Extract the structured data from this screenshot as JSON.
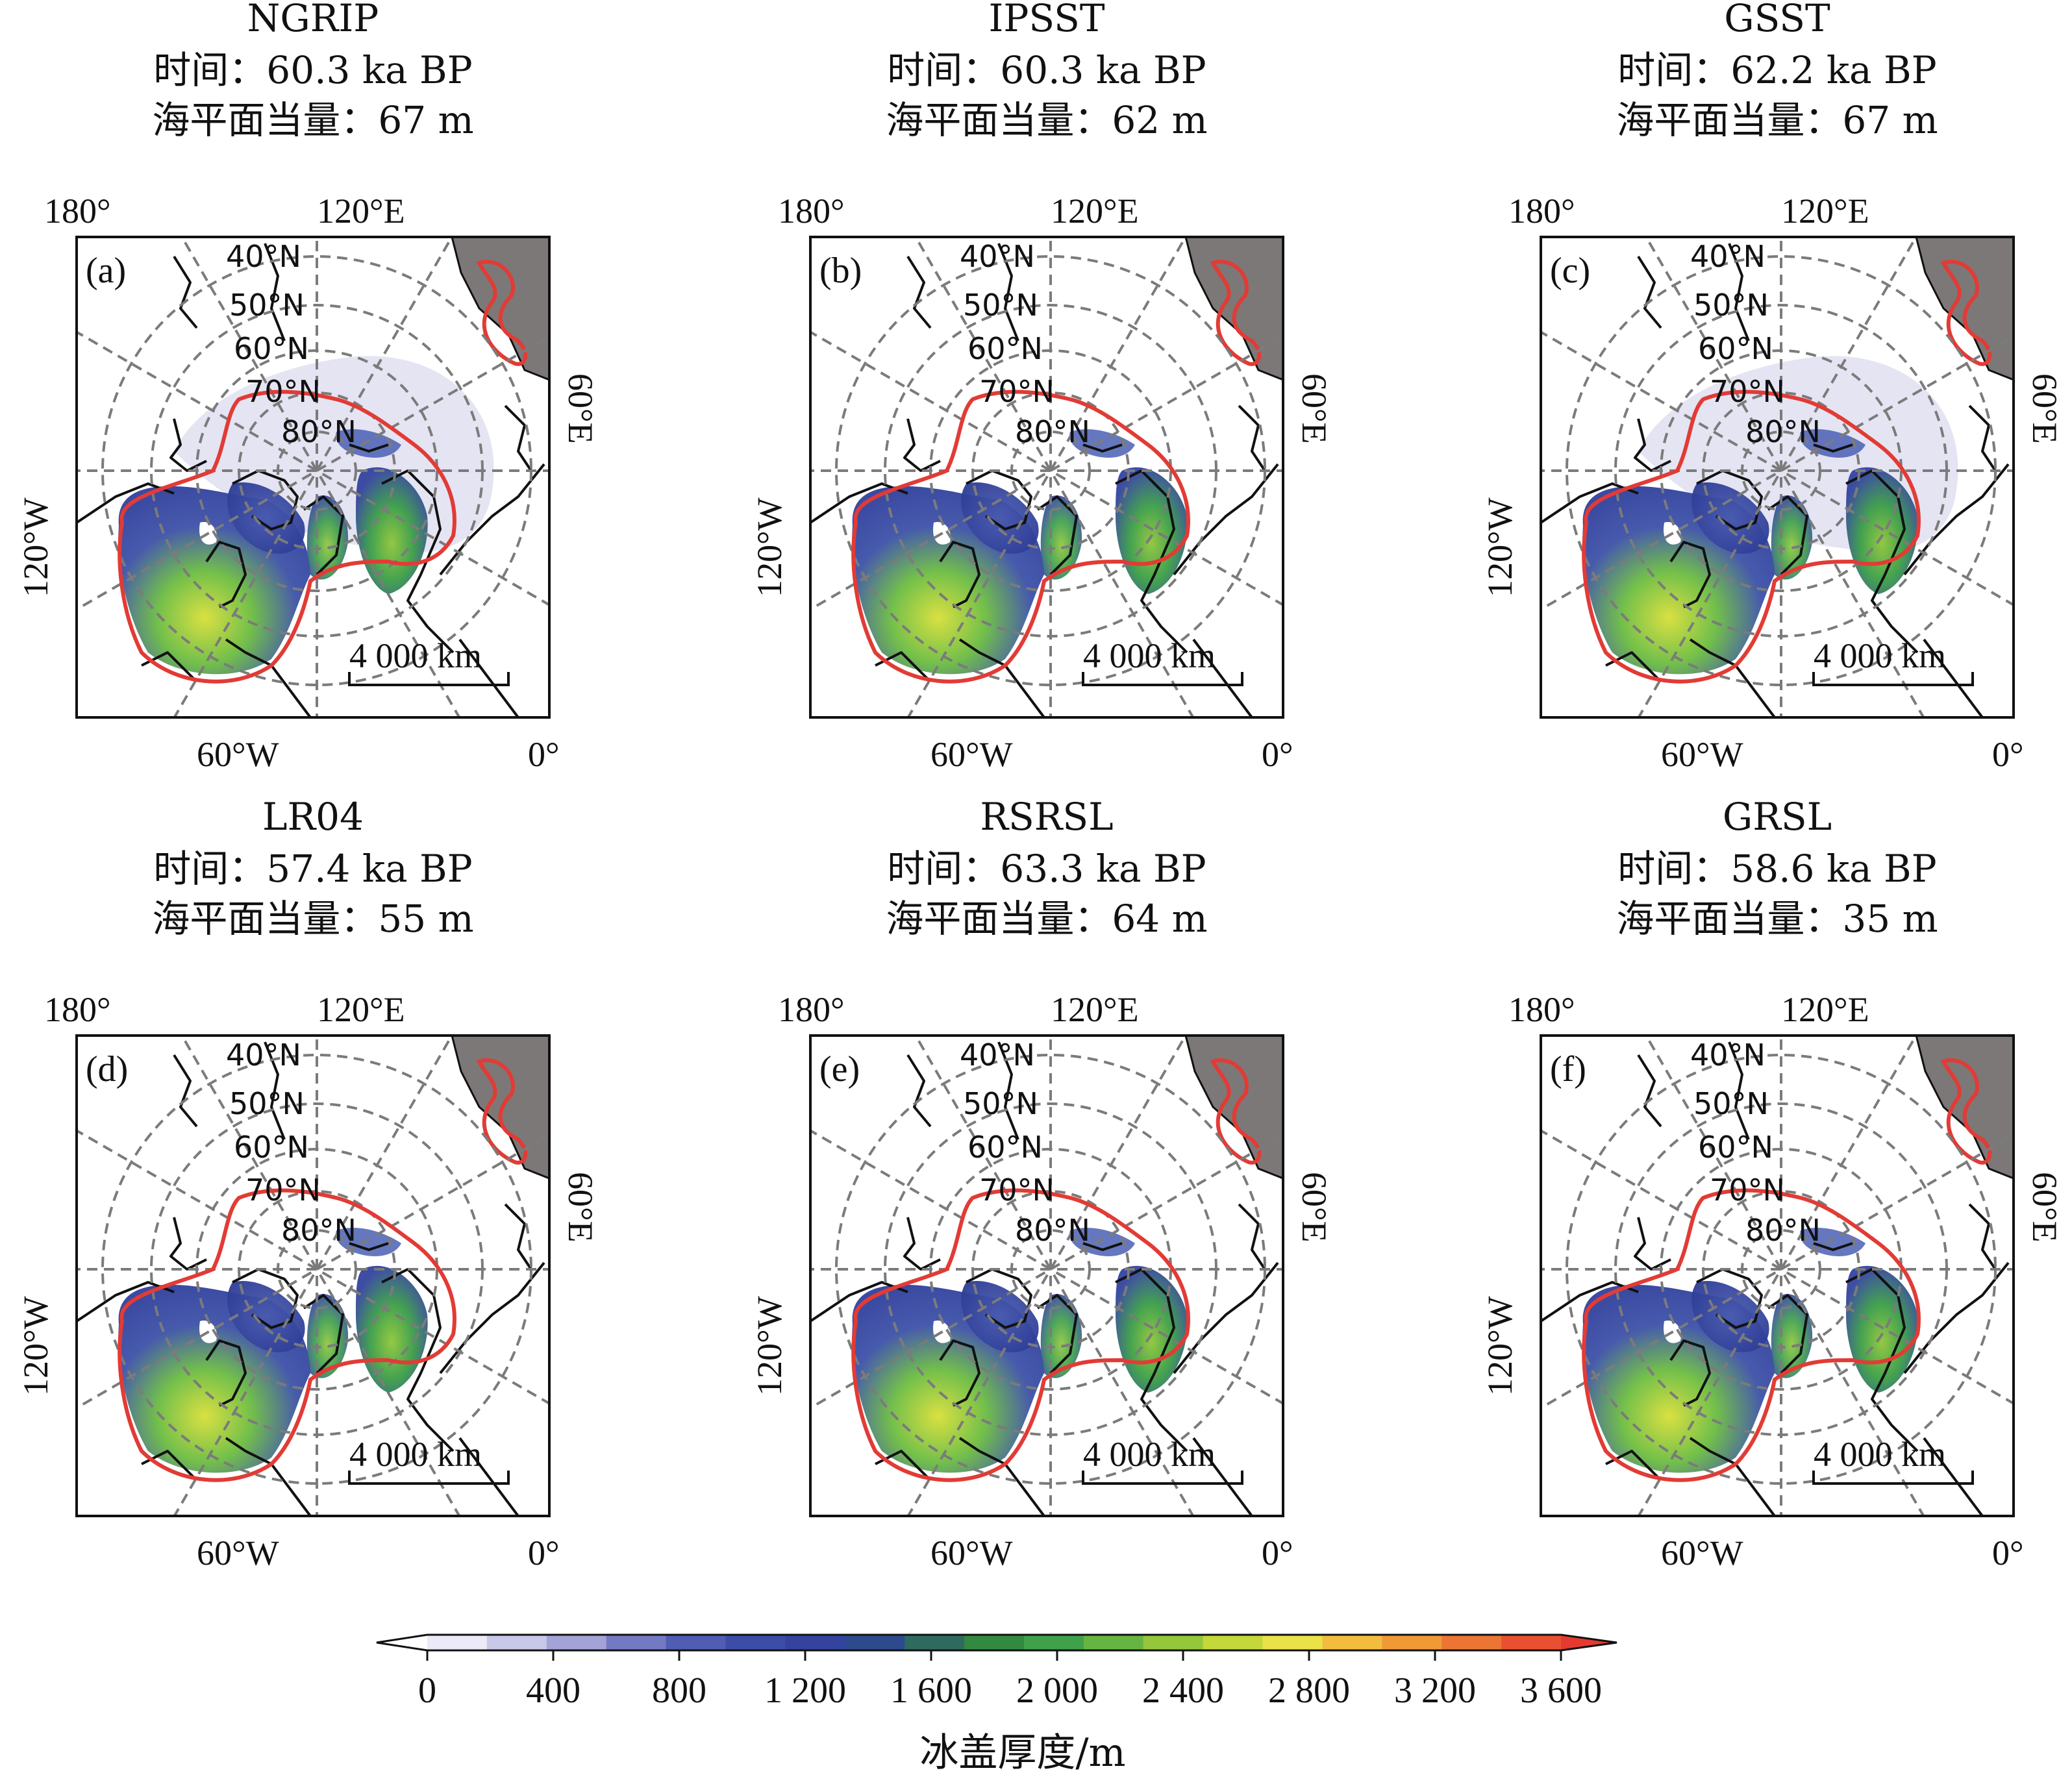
{
  "panels": [
    {
      "id": "a",
      "label": "(a)",
      "name": "NGRIP",
      "time_label": "时间：",
      "time": "60.3 ka BP",
      "slr_label": "海平面当量：",
      "slr": "67 m",
      "greenland_ice_shifted": true,
      "extra_white_extent": true
    },
    {
      "id": "b",
      "label": "(b)",
      "name": "IPSST",
      "time_label": "时间：",
      "time": "60.3 ka BP",
      "slr_label": "海平面当量：",
      "slr": "62 m",
      "greenland_ice_shifted": false,
      "extra_white_extent": false
    },
    {
      "id": "c",
      "label": "(c)",
      "name": "GSST",
      "time_label": "时间：",
      "time": "62.2 ka BP",
      "slr_label": "海平面当量：",
      "slr": "67 m",
      "greenland_ice_shifted": false,
      "extra_white_extent": true
    },
    {
      "id": "d",
      "label": "(d)",
      "name": "LR04",
      "time_label": "时间：",
      "time": "57.4 ka BP",
      "slr_label": "海平面当量：",
      "slr": "55 m",
      "greenland_ice_shifted": true,
      "extra_white_extent": false
    },
    {
      "id": "e",
      "label": "(e)",
      "name": "RSRSL",
      "time_label": "时间：",
      "time": "63.3 ka BP",
      "slr_label": "海平面当量：",
      "slr": "64 m",
      "greenland_ice_shifted": false,
      "extra_white_extent": false
    },
    {
      "id": "f",
      "label": "(f)",
      "name": "GRSL",
      "time_label": "时间：",
      "time": "58.6 ka BP",
      "slr_label": "海平面当量：",
      "slr": "35 m",
      "greenland_ice_shifted": false,
      "extra_white_extent": false
    }
  ],
  "map_labels": {
    "lon": {
      "top_left": "180°",
      "top_center": "120°E",
      "right": "60°E",
      "left": "120°W",
      "bottom_center": "60°W",
      "bottom_right": "0°"
    },
    "lat": [
      "40°N",
      "50°N",
      "60°N",
      "70°N",
      "80°N"
    ],
    "scale_bar": "4 000 km"
  },
  "colorbar": {
    "title": "冰盖厚度/m",
    "ticks": [
      "0",
      "400",
      "800",
      "1 200",
      "1 600",
      "2 000",
      "2 400",
      "2 800",
      "3 200",
      "3 600"
    ],
    "colors": [
      "#ebeaf6",
      "#c9c8e9",
      "#a3a3d8",
      "#7479c3",
      "#4f5db2",
      "#3c4da8",
      "#33439e",
      "#2d4a8d",
      "#2f6a5e",
      "#33893f",
      "#3fa14a",
      "#66b543",
      "#94c83a",
      "#c4d83a",
      "#e9e249",
      "#f2bd3e",
      "#f09a36",
      "#ec7534",
      "#e95031",
      "#e63a30"
    ]
  },
  "colors": {
    "ice_outline": "#e23b35",
    "coast": "#111111",
    "grid": "#7b7b7b",
    "land_patch": "#7c7878"
  }
}
